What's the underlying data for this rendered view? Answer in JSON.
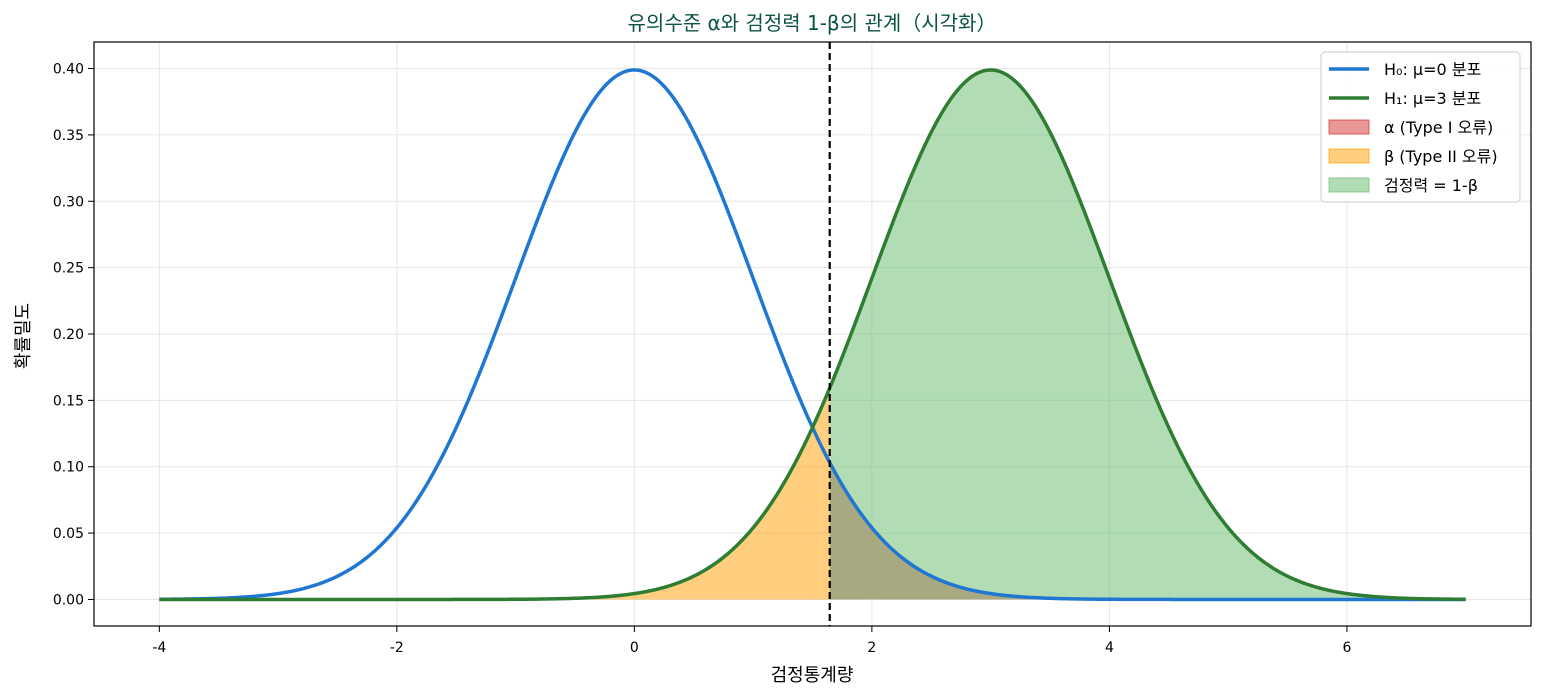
{
  "chart_data": {
    "type": "line",
    "title": "유의수준 α와 검정력 1-β의 관계（시각화）",
    "xlabel": "검정통계량",
    "ylabel": "확률밀도",
    "xlim": [
      -4.55,
      7.55
    ],
    "ylim": [
      -0.02,
      0.42
    ],
    "x_ticks": [
      -4,
      -2,
      0,
      2,
      4,
      6
    ],
    "x_tick_labels": [
      "-4",
      "-2",
      "0",
      "2",
      "4",
      "6"
    ],
    "y_ticks": [
      0.0,
      0.05,
      0.1,
      0.15,
      0.2,
      0.25,
      0.3,
      0.35,
      0.4
    ],
    "y_tick_labels": [
      "0.00",
      "0.05",
      "0.10",
      "0.15",
      "0.20",
      "0.25",
      "0.30",
      "0.35",
      "0.40"
    ],
    "grid": true,
    "legend_position": "top-right",
    "critical_value": 1.645,
    "series": [
      {
        "name": "H₀: μ=0 분포",
        "kind": "normal",
        "mean": 0,
        "sd": 1,
        "x_range": [
          -4,
          7
        ],
        "color": "#1f77d2"
      },
      {
        "name": "H₁: μ=3 분포",
        "kind": "normal",
        "mean": 3,
        "sd": 1,
        "x_range": [
          -4,
          7
        ],
        "color": "#2e7d32"
      }
    ],
    "regions": [
      {
        "name": "α (Type I 오류)",
        "under": "H₀",
        "x_range": [
          1.645,
          7
        ],
        "color": "#d32f2f",
        "opacity": 0.5
      },
      {
        "name": "β (Type II 오류)",
        "under": "H₁",
        "x_range": [
          -4,
          1.645
        ],
        "color": "#ffa000",
        "opacity": 0.5
      },
      {
        "name": "검정력 = 1-β",
        "under": "H₁",
        "x_range": [
          1.645,
          7
        ],
        "color": "#66bb6a",
        "opacity": 0.5
      }
    ],
    "colors": {
      "title": "#0b5345",
      "critical_line": "#000000",
      "grid": "#e6e6e6"
    }
  }
}
